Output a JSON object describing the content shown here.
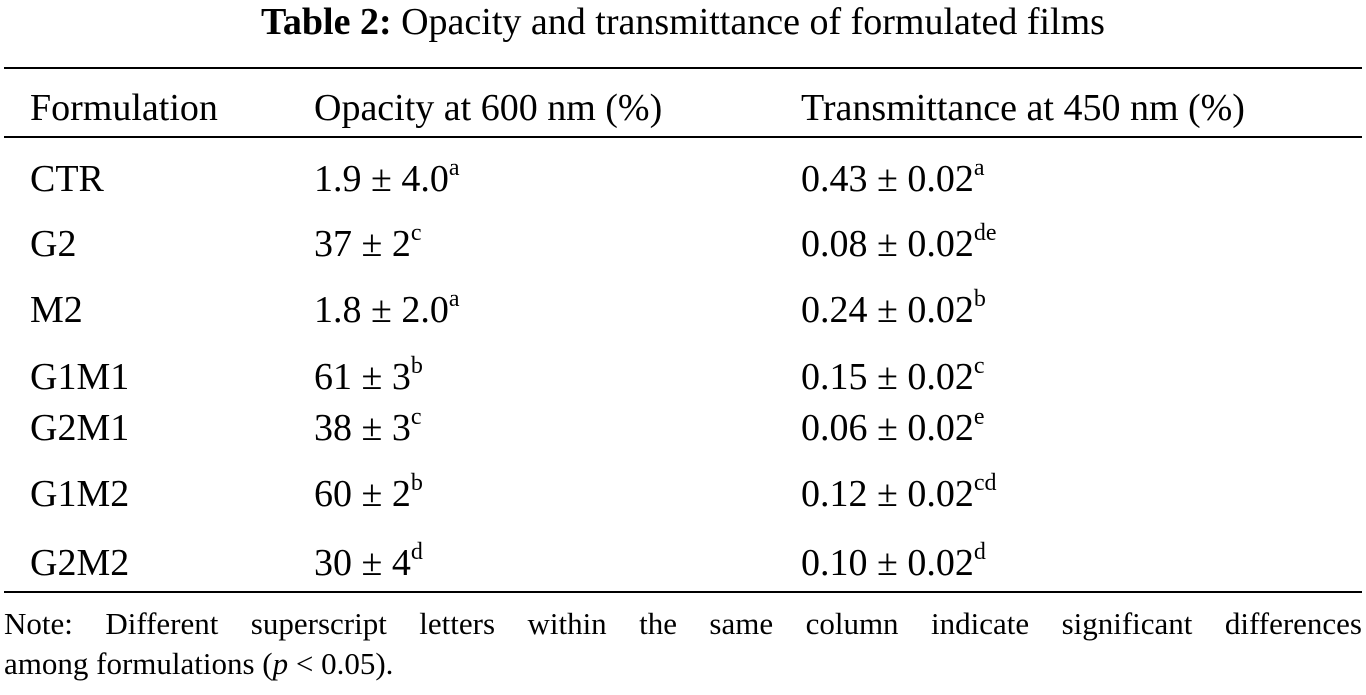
{
  "caption": {
    "label": "Table 2:",
    "title": "Opacity and transmittance of formulated films"
  },
  "table": {
    "headers": [
      "Formulation",
      "Opacity at 600 nm (%)",
      "Transmittance at 450 nm (%)"
    ],
    "rows": [
      {
        "formulation": "CTR",
        "opacity": "1.9 ± 4.0",
        "opacity_sup": "a",
        "transmittance": "0.43 ± 0.02",
        "transmittance_sup": "a"
      },
      {
        "formulation": "G2",
        "opacity": "37 ± 2",
        "opacity_sup": "c",
        "transmittance": "0.08 ± 0.02",
        "transmittance_sup": "de"
      },
      {
        "formulation": "M2",
        "opacity": "1.8 ± 2.0",
        "opacity_sup": "a",
        "transmittance": "0.24 ± 0.02",
        "transmittance_sup": "b"
      },
      {
        "formulation": "G1M1",
        "opacity": "61 ± 3",
        "opacity_sup": "b",
        "transmittance": "0.15 ± 0.02",
        "transmittance_sup": "c"
      },
      {
        "formulation": "G2M1",
        "opacity": "38 ± 3",
        "opacity_sup": "c",
        "transmittance": "0.06 ± 0.02",
        "transmittance_sup": "e"
      },
      {
        "formulation": "G1M2",
        "opacity": "60 ± 2",
        "opacity_sup": "b",
        "transmittance": "0.12 ± 0.02",
        "transmittance_sup": "cd"
      },
      {
        "formulation": "G2M2",
        "opacity": "30 ± 4",
        "opacity_sup": "d",
        "transmittance": "0.10 ± 0.02",
        "transmittance_sup": "d"
      }
    ]
  },
  "note": {
    "line1": "Note: Different superscript letters within the same column indicate significant differences",
    "line2_prefix": "among formulations (",
    "line2_italic": "p",
    "line2_suffix": " < 0.05)."
  }
}
